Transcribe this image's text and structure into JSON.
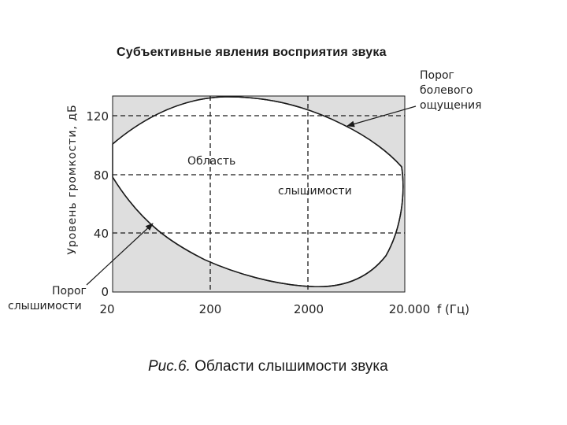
{
  "title": "Субъективные  явления восприятия звука",
  "caption": {
    "prefix": "Рис.6.",
    "text": " Области слышимости звука"
  },
  "y_axis_label": "Уровень громкости, дБ",
  "y_ticks": [
    "120",
    "80",
    "40",
    "0"
  ],
  "x_ticks": [
    "20",
    "200",
    "2000",
    "20.000"
  ],
  "x_axis_label": "f (Гц)",
  "region_label": {
    "line1": "Область",
    "line2": "слышимости"
  },
  "pain_threshold_label": [
    "Порог",
    "болевого",
    "ощущения"
  ],
  "hearing_threshold_label": [
    "Порог",
    "слышимости"
  ],
  "colors": {
    "outside_region": "#dedede",
    "inside_region": "#ffffff",
    "curve": "#1a1a1a",
    "grid": "#1a1a1a"
  }
}
